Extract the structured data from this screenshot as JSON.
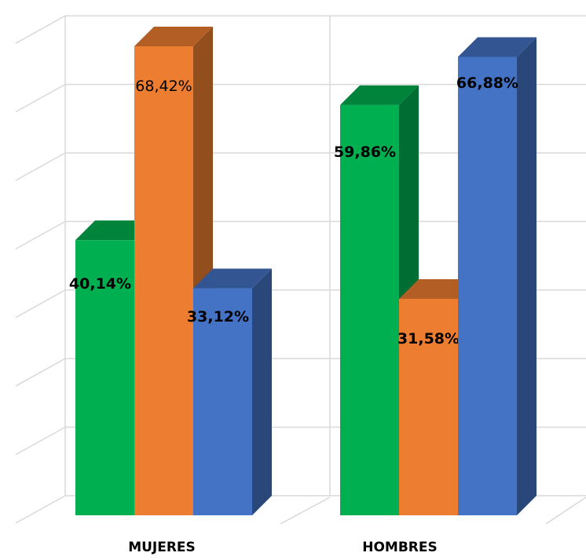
{
  "chart_data": {
    "type": "bar",
    "style": "3d-clustered-column",
    "categories": [
      "MUJERES",
      "HOMBRES"
    ],
    "series": [
      {
        "values": [
          40.14,
          59.86
        ],
        "color": "#00B050",
        "labels": [
          "40,14%",
          "59,86%"
        ]
      },
      {
        "values": [
          68.42,
          31.58
        ],
        "color": "#ED7D31",
        "labels": [
          "68,42%",
          "31,58%"
        ]
      },
      {
        "values": [
          33.12,
          66.88
        ],
        "color": "#4472C4",
        "labels": [
          "33,12%",
          "66,88%"
        ]
      }
    ],
    "ylim": [
      0,
      70
    ],
    "grid": true,
    "legend": "none",
    "title": "",
    "xlabel": "",
    "ylabel": ""
  }
}
